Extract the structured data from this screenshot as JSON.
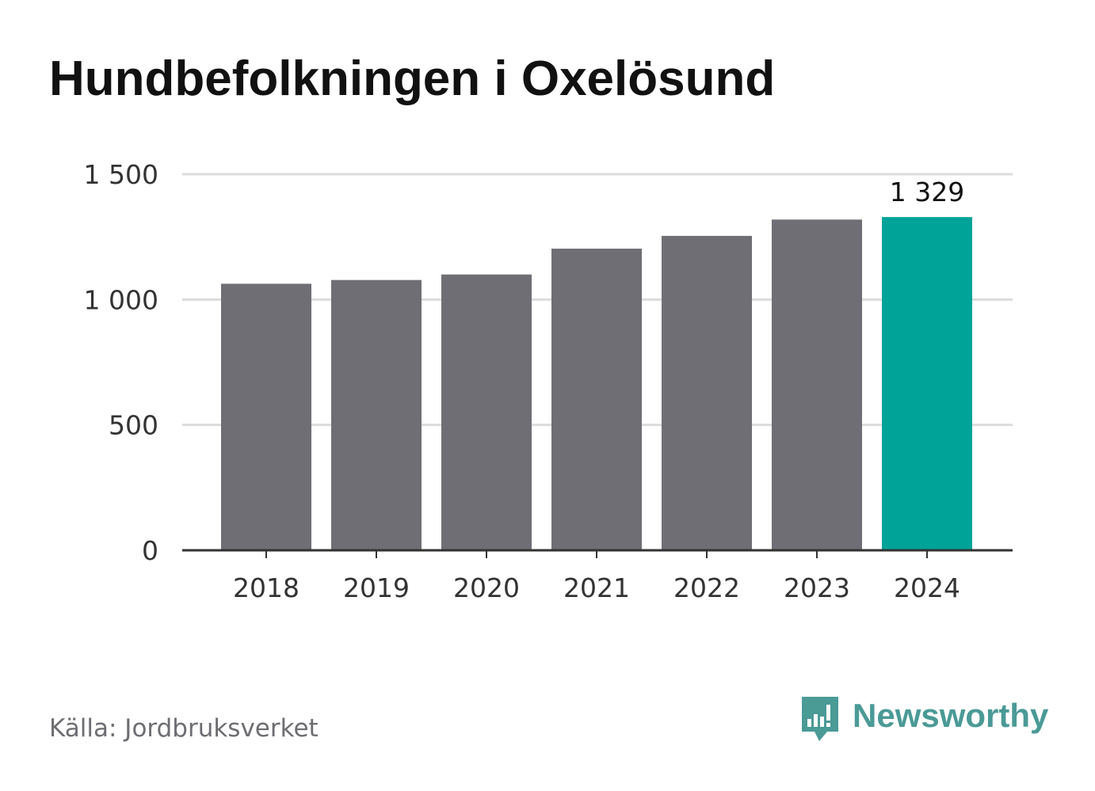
{
  "title": "Hundbefolkningen i Oxelösund",
  "source": "Källa: Jordbruksverket",
  "brand": {
    "name": "Newsworthy",
    "icon": "newsworthy-logo-icon",
    "color": "#4a9a96"
  },
  "colors": {
    "bar": "#6f6e74",
    "highlight": "#00a398",
    "grid": "#dcdcdc",
    "axis": "#333333",
    "tick_text": "#333333"
  },
  "chart_data": {
    "type": "bar",
    "title": "Hundbefolkningen i Oxelösund",
    "xlabel": "",
    "ylabel": "",
    "categories": [
      "2018",
      "2019",
      "2020",
      "2021",
      "2022",
      "2023",
      "2024"
    ],
    "values": [
      1063,
      1078,
      1100,
      1203,
      1254,
      1319,
      1329
    ],
    "ylim": [
      0,
      1500
    ],
    "yticks": [
      0,
      500,
      1000,
      1500
    ],
    "ytick_labels": [
      "0",
      "500",
      "1 000",
      "1 500"
    ],
    "highlight_index": 6,
    "data_labels": [
      {
        "index": 6,
        "text": "1 329"
      }
    ],
    "grid": true,
    "legend": "none"
  }
}
